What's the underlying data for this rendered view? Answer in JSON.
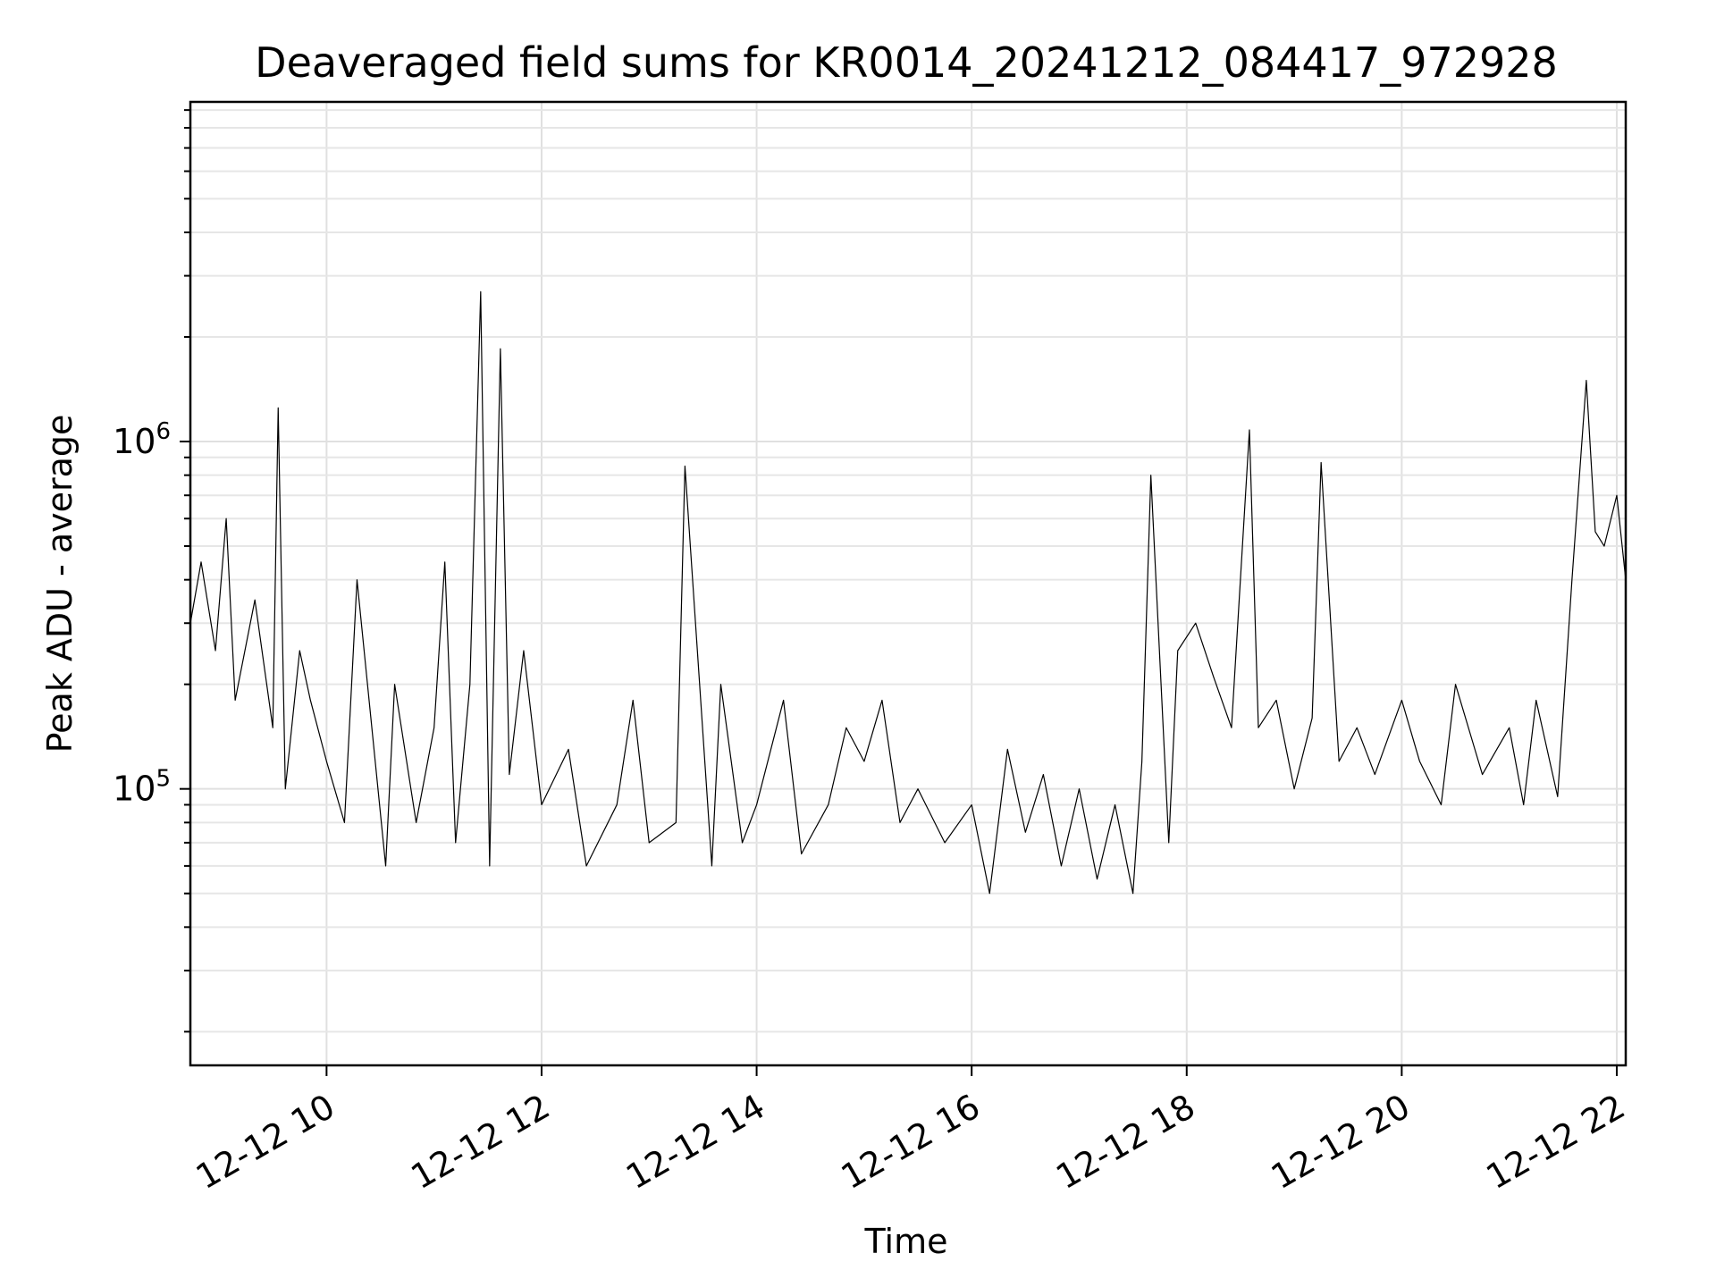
{
  "chart_data": {
    "type": "line",
    "title": "Deaveraged field sums for KR0014_20241212_084417_972928",
    "xlabel": "Time",
    "ylabel": "Peak ADU - average",
    "yscale": "log",
    "grid": true,
    "line_color": "#000000",
    "xlim": [
      "2024-12-12 08:44",
      "2024-12-12 22:05"
    ],
    "ylim": [
      16000,
      9500000
    ],
    "x_ticks": [
      {
        "value": "2024-12-12 10:00",
        "label": "12-12 10"
      },
      {
        "value": "2024-12-12 12:00",
        "label": "12-12 12"
      },
      {
        "value": "2024-12-12 14:00",
        "label": "12-12 14"
      },
      {
        "value": "2024-12-12 16:00",
        "label": "12-12 16"
      },
      {
        "value": "2024-12-12 18:00",
        "label": "12-12 18"
      },
      {
        "value": "2024-12-12 20:00",
        "label": "12-12 20"
      },
      {
        "value": "2024-12-12 22:00",
        "label": "12-12 22"
      }
    ],
    "y_ticks": [
      {
        "value": 100000,
        "label_base": "10",
        "label_exp": "5"
      },
      {
        "value": 1000000,
        "label_base": "10",
        "label_exp": "6"
      }
    ],
    "series": [
      {
        "x": [
          "2024-12-12 08:44",
          "2024-12-12 08:50",
          "2024-12-12 08:58",
          "2024-12-12 09:04",
          "2024-12-12 09:09",
          "2024-12-12 09:20",
          "2024-12-12 09:30",
          "2024-12-12 09:33",
          "2024-12-12 09:37",
          "2024-12-12 09:45",
          "2024-12-12 09:51",
          "2024-12-12 10:00",
          "2024-12-12 10:10",
          "2024-12-12 10:17",
          "2024-12-12 10:33",
          "2024-12-12 10:38",
          "2024-12-12 10:50",
          "2024-12-12 11:00",
          "2024-12-12 11:06",
          "2024-12-12 11:12",
          "2024-12-12 11:20",
          "2024-12-12 11:26",
          "2024-12-12 11:31",
          "2024-12-12 11:37",
          "2024-12-12 11:42",
          "2024-12-12 11:50",
          "2024-12-12 12:00",
          "2024-12-12 12:15",
          "2024-12-12 12:25",
          "2024-12-12 12:42",
          "2024-12-12 12:51",
          "2024-12-12 13:00",
          "2024-12-12 13:15",
          "2024-12-12 13:20",
          "2024-12-12 13:35",
          "2024-12-12 13:40",
          "2024-12-12 13:52",
          "2024-12-12 14:00",
          "2024-12-12 14:15",
          "2024-12-12 14:25",
          "2024-12-12 14:40",
          "2024-12-12 14:50",
          "2024-12-12 15:00",
          "2024-12-12 15:10",
          "2024-12-12 15:20",
          "2024-12-12 15:30",
          "2024-12-12 15:45",
          "2024-12-12 16:00",
          "2024-12-12 16:10",
          "2024-12-12 16:20",
          "2024-12-12 16:30",
          "2024-12-12 16:40",
          "2024-12-12 16:50",
          "2024-12-12 17:00",
          "2024-12-12 17:10",
          "2024-12-12 17:20",
          "2024-12-12 17:30",
          "2024-12-12 17:35",
          "2024-12-12 17:40",
          "2024-12-12 17:50",
          "2024-12-12 17:55",
          "2024-12-12 18:05",
          "2024-12-12 18:15",
          "2024-12-12 18:25",
          "2024-12-12 18:35",
          "2024-12-12 18:40",
          "2024-12-12 18:50",
          "2024-12-12 19:00",
          "2024-12-12 19:10",
          "2024-12-12 19:15",
          "2024-12-12 19:25",
          "2024-12-12 19:35",
          "2024-12-12 19:45",
          "2024-12-12 20:00",
          "2024-12-12 20:10",
          "2024-12-12 20:22",
          "2024-12-12 20:30",
          "2024-12-12 20:45",
          "2024-12-12 21:00",
          "2024-12-12 21:08",
          "2024-12-12 21:15",
          "2024-12-12 21:27",
          "2024-12-12 21:35",
          "2024-12-12 21:43",
          "2024-12-12 21:48",
          "2024-12-12 21:53",
          "2024-12-12 22:00",
          "2024-12-12 22:05"
        ],
        "y": [
          300000,
          450000,
          250000,
          600000,
          180000,
          350000,
          150000,
          1250000,
          100000,
          250000,
          180000,
          120000,
          80000,
          400000,
          60000,
          200000,
          80000,
          150000,
          450000,
          70000,
          200000,
          2700000,
          60000,
          1850000,
          110000,
          250000,
          90000,
          130000,
          60000,
          90000,
          180000,
          70000,
          80000,
          850000,
          60000,
          200000,
          70000,
          90000,
          180000,
          65000,
          90000,
          150000,
          120000,
          180000,
          80000,
          100000,
          70000,
          90000,
          50000,
          130000,
          75000,
          110000,
          60000,
          100000,
          55000,
          90000,
          50000,
          120000,
          800000,
          70000,
          250000,
          300000,
          210000,
          150000,
          1080000,
          150000,
          180000,
          100000,
          160000,
          870000,
          120000,
          150000,
          110000,
          180000,
          120000,
          90000,
          200000,
          110000,
          150000,
          90000,
          180000,
          95000,
          400000,
          1500000,
          550000,
          500000,
          700000,
          400000
        ]
      }
    ]
  }
}
